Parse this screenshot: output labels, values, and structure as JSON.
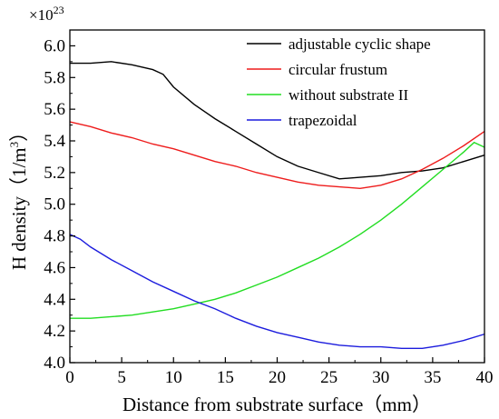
{
  "chart_data": {
    "type": "line",
    "title": "",
    "xlabel": "Distance from substrate surface（mm）",
    "ylabel_prefix": "H density（1/m",
    "ylabel_sup": "3",
    "ylabel_suffix": "）",
    "y_multiplier_base": "×10",
    "y_multiplier_exp": "23",
    "xlim": [
      0,
      40
    ],
    "ylim": [
      4.0,
      6.1
    ],
    "xticks": [
      "0",
      "5",
      "10",
      "15",
      "20",
      "25",
      "30",
      "35",
      "40"
    ],
    "yticks": [
      "4.0",
      "4.2",
      "4.4",
      "4.6",
      "4.8",
      "5.0",
      "5.2",
      "5.4",
      "5.6",
      "5.8",
      "6.0"
    ],
    "grid": false,
    "legend_position": "top-right",
    "series": [
      {
        "name": "adjustable cyclic shape",
        "color": "#000000",
        "points": [
          [
            0,
            5.89
          ],
          [
            2,
            5.89
          ],
          [
            4,
            5.9
          ],
          [
            6,
            5.88
          ],
          [
            8,
            5.85
          ],
          [
            9,
            5.82
          ],
          [
            10,
            5.74
          ],
          [
            12,
            5.63
          ],
          [
            14,
            5.54
          ],
          [
            16,
            5.46
          ],
          [
            18,
            5.38
          ],
          [
            20,
            5.3
          ],
          [
            22,
            5.24
          ],
          [
            24,
            5.2
          ],
          [
            26,
            5.16
          ],
          [
            28,
            5.17
          ],
          [
            30,
            5.18
          ],
          [
            32,
            5.2
          ],
          [
            34,
            5.21
          ],
          [
            36,
            5.23
          ],
          [
            38,
            5.27
          ],
          [
            40,
            5.31
          ]
        ]
      },
      {
        "name": "circular frustum",
        "color": "#ee1c1c",
        "points": [
          [
            0,
            5.52
          ],
          [
            2,
            5.49
          ],
          [
            4,
            5.45
          ],
          [
            6,
            5.42
          ],
          [
            8,
            5.38
          ],
          [
            10,
            5.35
          ],
          [
            12,
            5.31
          ],
          [
            14,
            5.27
          ],
          [
            16,
            5.24
          ],
          [
            18,
            5.2
          ],
          [
            20,
            5.17
          ],
          [
            22,
            5.14
          ],
          [
            24,
            5.12
          ],
          [
            26,
            5.11
          ],
          [
            28,
            5.1
          ],
          [
            30,
            5.12
          ],
          [
            32,
            5.16
          ],
          [
            34,
            5.22
          ],
          [
            36,
            5.29
          ],
          [
            38,
            5.37
          ],
          [
            40,
            5.46
          ]
        ]
      },
      {
        "name": "without substrate II",
        "color": "#22dd22",
        "points": [
          [
            0,
            4.28
          ],
          [
            2,
            4.28
          ],
          [
            4,
            4.29
          ],
          [
            6,
            4.3
          ],
          [
            8,
            4.32
          ],
          [
            10,
            4.34
          ],
          [
            12,
            4.37
          ],
          [
            14,
            4.4
          ],
          [
            16,
            4.44
          ],
          [
            18,
            4.49
          ],
          [
            20,
            4.54
          ],
          [
            22,
            4.6
          ],
          [
            24,
            4.66
          ],
          [
            26,
            4.73
          ],
          [
            28,
            4.81
          ],
          [
            30,
            4.9
          ],
          [
            32,
            5.0
          ],
          [
            34,
            5.11
          ],
          [
            36,
            5.22
          ],
          [
            38,
            5.33
          ],
          [
            39,
            5.39
          ],
          [
            40,
            5.36
          ]
        ]
      },
      {
        "name": "trapezoidal",
        "color": "#1c1cdd",
        "points": [
          [
            0,
            4.81
          ],
          [
            1,
            4.78
          ],
          [
            2,
            4.73
          ],
          [
            4,
            4.65
          ],
          [
            6,
            4.58
          ],
          [
            8,
            4.51
          ],
          [
            10,
            4.45
          ],
          [
            12,
            4.39
          ],
          [
            14,
            4.34
          ],
          [
            16,
            4.28
          ],
          [
            18,
            4.23
          ],
          [
            20,
            4.19
          ],
          [
            22,
            4.16
          ],
          [
            24,
            4.13
          ],
          [
            26,
            4.11
          ],
          [
            28,
            4.1
          ],
          [
            30,
            4.1
          ],
          [
            32,
            4.09
          ],
          [
            34,
            4.09
          ],
          [
            36,
            4.11
          ],
          [
            38,
            4.14
          ],
          [
            40,
            4.18
          ]
        ]
      }
    ]
  }
}
